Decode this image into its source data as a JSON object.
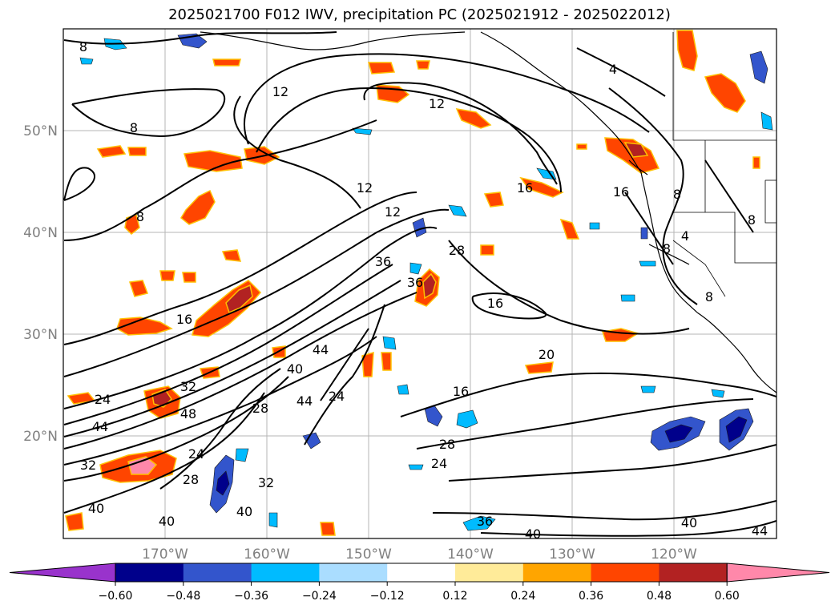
{
  "title": "2025021700 F012 IWV, precipitation PC (2025021912 - 2025022012)",
  "lat_labels": [
    "50°N",
    "40°N",
    "30°N",
    "20°N"
  ],
  "lon_labels": [
    "170°W",
    "160°W",
    "150°W",
    "140°W",
    "130°W",
    "120°W"
  ],
  "contour_labels": [
    "8",
    "12",
    "4",
    "8",
    "12",
    "16",
    "12",
    "12",
    "16",
    "8",
    "8",
    "8",
    "4",
    "8",
    "36",
    "36",
    "16",
    "16",
    "28",
    "8",
    "20",
    "44",
    "40",
    "24",
    "32",
    "44",
    "24",
    "44",
    "16",
    "24",
    "28",
    "48",
    "28",
    "32",
    "28",
    "40",
    "40",
    "24",
    "32",
    "36",
    "40",
    "40",
    "40",
    "44"
  ],
  "colorbar": {
    "ticks": [
      "−0.60",
      "−0.48",
      "−0.36",
      "−0.24",
      "−0.12",
      "0.12",
      "0.24",
      "0.36",
      "0.48",
      "0.60"
    ],
    "colors": [
      "#9933cc",
      "#00008b",
      "#3355cc",
      "#00bbff",
      "#aaddff",
      "#ffffff",
      "#ffeb99",
      "#ffa500",
      "#ff4500",
      "#b22222",
      "#ff88aa"
    ]
  }
}
